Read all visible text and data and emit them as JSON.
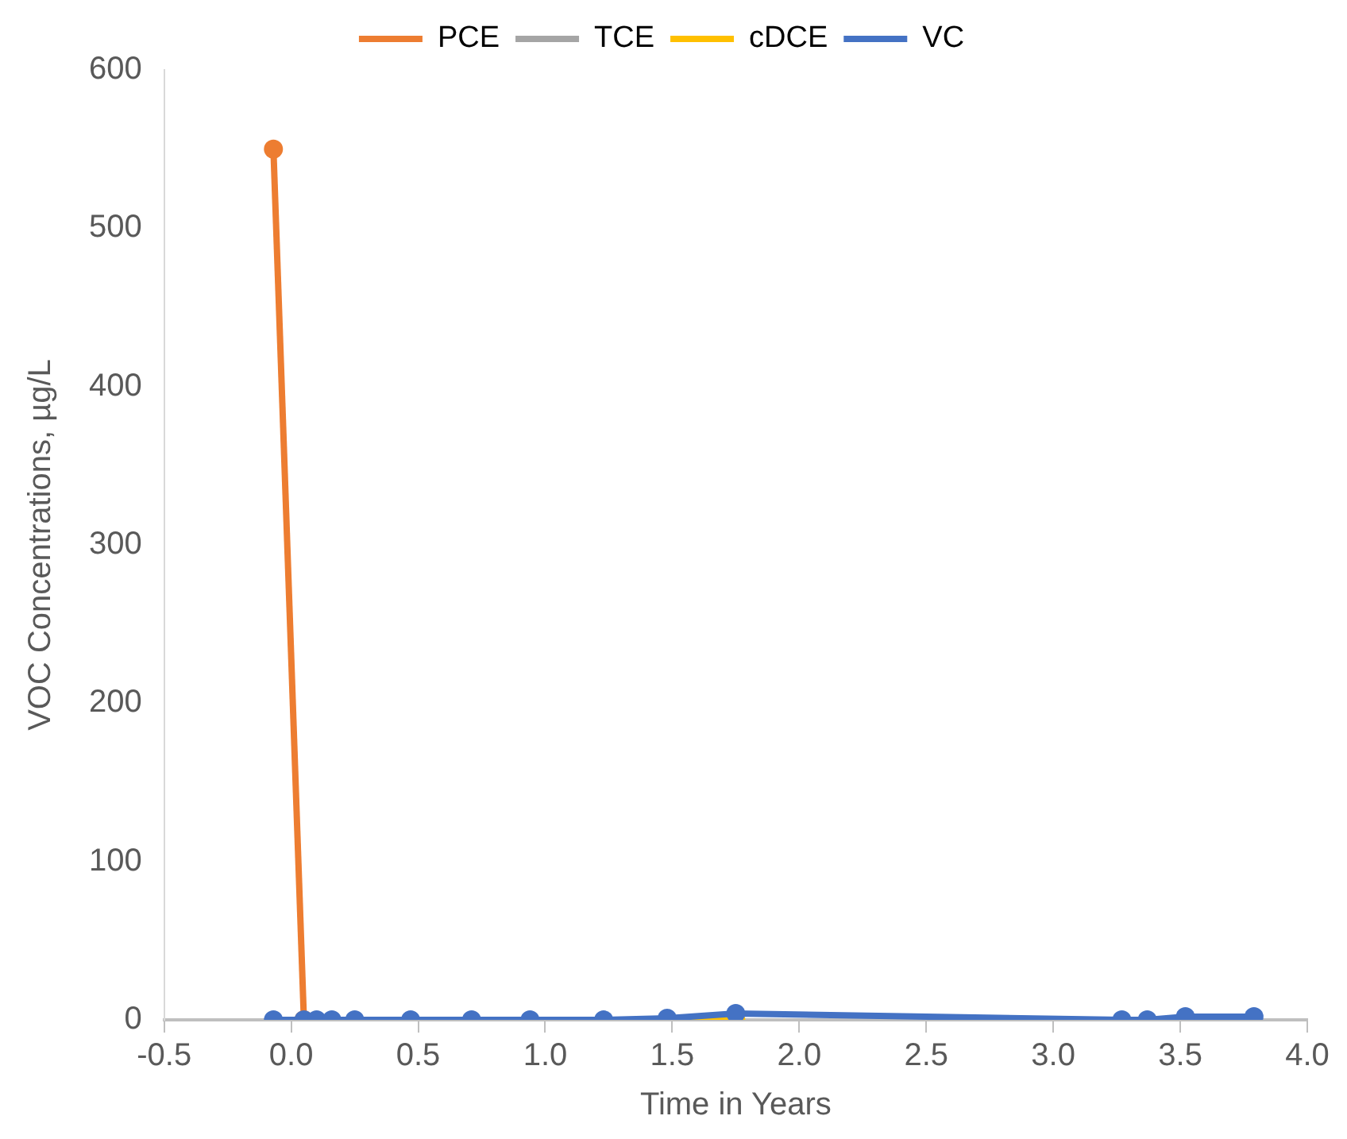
{
  "chart_data": {
    "type": "line",
    "xlabel": "Time in Years",
    "ylabel": "VOC Concentrations, µg/L",
    "x": [
      -0.07,
      0.05,
      0.1,
      0.16,
      0.25,
      0.47,
      0.71,
      0.94,
      1.23,
      1.48,
      1.75,
      3.27,
      3.37,
      3.52,
      3.79
    ],
    "series": [
      {
        "name": "PCE",
        "color": "#ed7d31",
        "values": [
          550,
          0,
          null,
          null,
          null,
          null,
          null,
          null,
          null,
          null,
          null,
          null,
          null,
          null,
          null
        ]
      },
      {
        "name": "TCE",
        "color": "#a5a5a5",
        "values": [
          null,
          null,
          null,
          null,
          null,
          null,
          null,
          null,
          null,
          null,
          null,
          null,
          null,
          null,
          null
        ]
      },
      {
        "name": "cDCE",
        "color": "#ffc000",
        "values": [
          null,
          null,
          null,
          null,
          null,
          null,
          null,
          null,
          null,
          0,
          0,
          null,
          null,
          null,
          null
        ]
      },
      {
        "name": "VC",
        "color": "#4472c4",
        "values": [
          0,
          0,
          0,
          0,
          0,
          0,
          0,
          0,
          0,
          1,
          4,
          0,
          0,
          2,
          2
        ]
      }
    ],
    "xlim": [
      -0.5,
      4.0
    ],
    "xticks": [
      {
        "value": -0.5,
        "label": "-0.5"
      },
      {
        "value": 0,
        "label": "0.0"
      },
      {
        "value": 0.5,
        "label": "0.5"
      },
      {
        "value": 1,
        "label": "1.0"
      },
      {
        "value": 1.5,
        "label": "1.5"
      },
      {
        "value": 2,
        "label": "2.0"
      },
      {
        "value": 2.5,
        "label": "2.5"
      },
      {
        "value": 3,
        "label": "3.0"
      },
      {
        "value": 3.5,
        "label": "3.5"
      },
      {
        "value": 4,
        "label": "4.0"
      }
    ],
    "ylim": [
      0,
      600
    ],
    "yticks": [
      0,
      100,
      200,
      300,
      400,
      500,
      600
    ],
    "grid": false,
    "legend": "top",
    "marker": "circle",
    "line_style": "solid"
  }
}
